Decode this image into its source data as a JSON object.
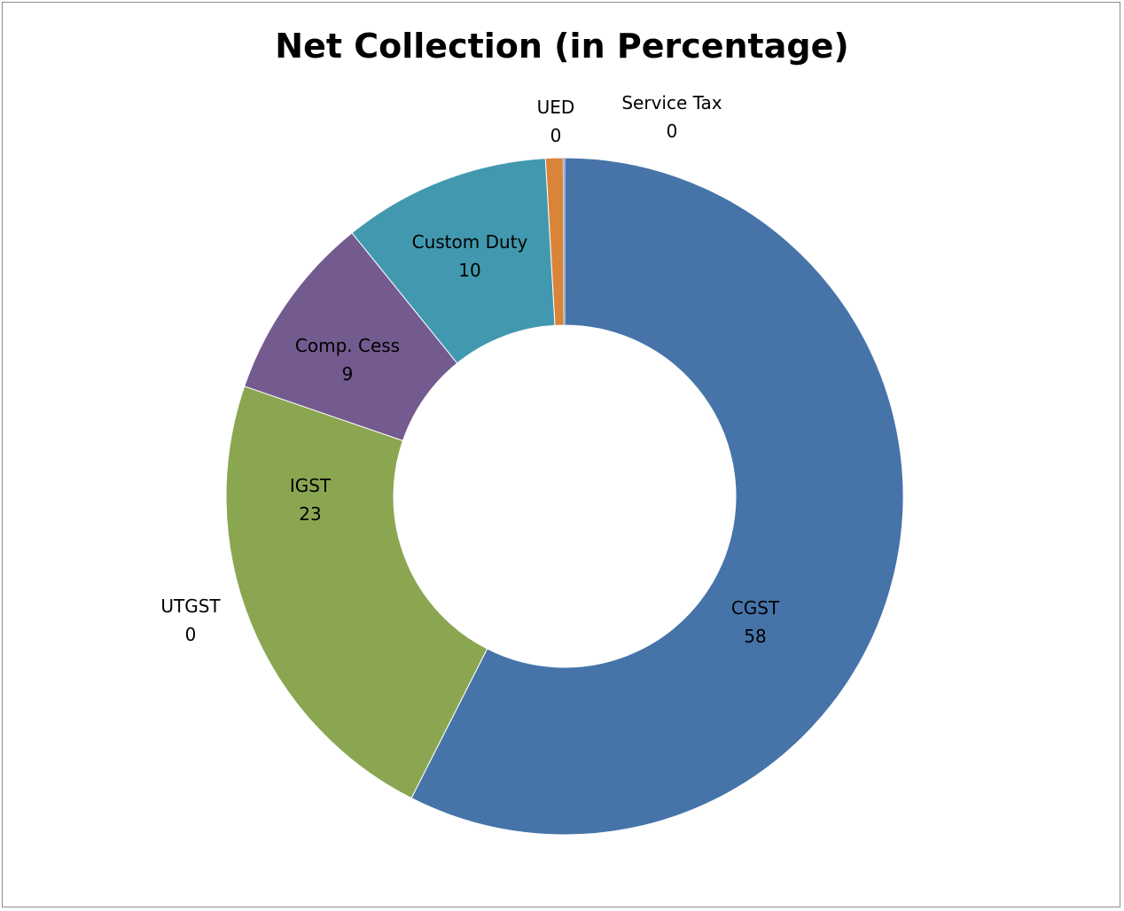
{
  "chart_data": {
    "type": "pie",
    "title": "Net Collection (in Percentage)",
    "legend": "none",
    "hole": "donut",
    "slices": [
      {
        "name": "CGST",
        "value": 58,
        "display": "58",
        "color": "#4674A9"
      },
      {
        "name": "UTGST",
        "value": 0,
        "display": "0",
        "color": "#4674A9"
      },
      {
        "name": "IGST",
        "value": 23,
        "display": "23",
        "color": "#8BA651"
      },
      {
        "name": "Comp. Cess",
        "value": 9,
        "display": "9",
        "color": "#735A8F"
      },
      {
        "name": "Custom Duty",
        "value": 10,
        "display": "10",
        "color": "#4299AF"
      },
      {
        "name": "UED",
        "value": 0,
        "display": "0",
        "color": "#DA8439"
      },
      {
        "name": "Service Tax",
        "value": 0,
        "display": "0",
        "color": "#93A9CF"
      }
    ]
  }
}
